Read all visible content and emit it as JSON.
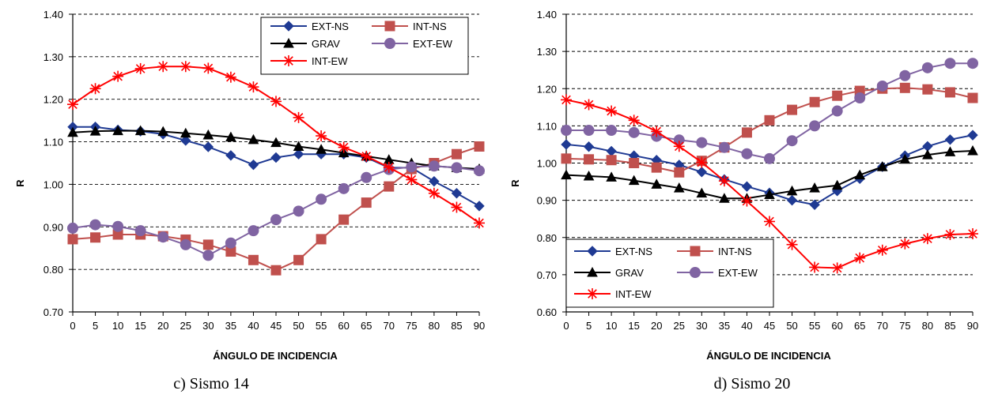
{
  "colors": {
    "EXT-NS": "#1f3a93",
    "INT-NS": "#c0504d",
    "GRAV": "#000000",
    "EXT-EW": "#8064a2",
    "INT-EW": "#ff0000"
  },
  "markers": {
    "EXT-NS": "diamond",
    "INT-NS": "square",
    "GRAV": "triangle",
    "EXT-EW": "circle",
    "INT-EW": "star"
  },
  "chart_data": [
    {
      "type": "line",
      "caption": "c) Sismo 14",
      "xlabel": "ÁNGULO DE INCIDENCIA",
      "ylabel": "R",
      "x": [
        0,
        5,
        10,
        15,
        20,
        25,
        30,
        35,
        40,
        45,
        50,
        55,
        60,
        65,
        70,
        75,
        80,
        85,
        90
      ],
      "ylim": [
        0.7,
        1.4
      ],
      "yticks": [
        "0.70",
        "0.80",
        "0.90",
        "1.00",
        "1.10",
        "1.20",
        "1.30",
        "1.40"
      ],
      "grid": "horizontal-dashed",
      "legend_position": "top-right",
      "legend_columns": 2,
      "series": [
        {
          "name": "EXT-NS",
          "values": [
            1.135,
            1.135,
            1.128,
            1.125,
            1.118,
            1.103,
            1.088,
            1.068,
            1.046,
            1.063,
            1.071,
            1.071,
            1.071,
            1.063,
            1.039,
            1.039,
            1.007,
            0.979,
            0.949
          ]
        },
        {
          "name": "INT-NS",
          "values": [
            0.871,
            0.875,
            0.882,
            0.882,
            0.878,
            0.87,
            0.858,
            0.842,
            0.822,
            0.798,
            0.822,
            0.871,
            0.917,
            0.957,
            0.995,
            1.036,
            1.05,
            1.071,
            1.089
          ]
        },
        {
          "name": "GRAV",
          "values": [
            1.122,
            1.125,
            1.126,
            1.126,
            1.124,
            1.12,
            1.116,
            1.111,
            1.105,
            1.098,
            1.089,
            1.082,
            1.074,
            1.066,
            1.058,
            1.05,
            1.043,
            1.039,
            1.036
          ]
        },
        {
          "name": "EXT-EW",
          "values": [
            0.897,
            0.905,
            0.901,
            0.891,
            0.876,
            0.858,
            0.833,
            0.862,
            0.891,
            0.917,
            0.937,
            0.965,
            0.99,
            1.016,
            1.035,
            1.041,
            1.043,
            1.039,
            1.032
          ]
        },
        {
          "name": "INT-EW",
          "values": [
            1.188,
            1.225,
            1.254,
            1.272,
            1.277,
            1.277,
            1.273,
            1.252,
            1.229,
            1.195,
            1.157,
            1.114,
            1.087,
            1.066,
            1.04,
            1.011,
            0.979,
            0.946,
            0.909
          ]
        }
      ]
    },
    {
      "type": "line",
      "caption": "d) Sismo 20",
      "xlabel": "ÁNGULO DE INCIDENCIA",
      "ylabel": "R",
      "x": [
        0,
        5,
        10,
        15,
        20,
        25,
        30,
        35,
        40,
        45,
        50,
        55,
        60,
        65,
        70,
        75,
        80,
        85,
        90
      ],
      "ylim": [
        0.6,
        1.4
      ],
      "yticks": [
        "0.60",
        "0.70",
        "0.80",
        "0.90",
        "1.00",
        "1.10",
        "1.20",
        "1.30",
        "1.40"
      ],
      "grid": "horizontal-dashed",
      "legend_position": "bottom-left",
      "legend_columns": 2,
      "series": [
        {
          "name": "EXT-NS",
          "values": [
            1.05,
            1.044,
            1.032,
            1.02,
            1.008,
            0.995,
            0.976,
            0.956,
            0.937,
            0.92,
            0.9,
            0.888,
            0.925,
            0.958,
            0.99,
            1.02,
            1.045,
            1.063,
            1.075
          ]
        },
        {
          "name": "INT-NS",
          "values": [
            1.012,
            1.01,
            1.008,
            1.0,
            0.988,
            0.975,
            1.006,
            1.042,
            1.082,
            1.115,
            1.143,
            1.164,
            1.181,
            1.194,
            1.2,
            1.202,
            1.198,
            1.19,
            1.175
          ]
        },
        {
          "name": "GRAV",
          "values": [
            0.968,
            0.965,
            0.962,
            0.953,
            0.943,
            0.933,
            0.919,
            0.905,
            0.905,
            0.915,
            0.925,
            0.933,
            0.94,
            0.968,
            0.99,
            1.01,
            1.022,
            1.03,
            1.033
          ]
        },
        {
          "name": "EXT-EW",
          "values": [
            1.088,
            1.088,
            1.088,
            1.082,
            1.072,
            1.062,
            1.055,
            1.042,
            1.025,
            1.012,
            1.06,
            1.1,
            1.14,
            1.175,
            1.207,
            1.235,
            1.256,
            1.268,
            1.268
          ]
        },
        {
          "name": "INT-EW",
          "values": [
            1.17,
            1.157,
            1.14,
            1.115,
            1.085,
            1.045,
            1.002,
            0.952,
            0.898,
            0.843,
            0.781,
            0.72,
            0.718,
            0.745,
            0.766,
            0.783,
            0.797,
            0.808,
            0.81
          ]
        }
      ]
    }
  ]
}
